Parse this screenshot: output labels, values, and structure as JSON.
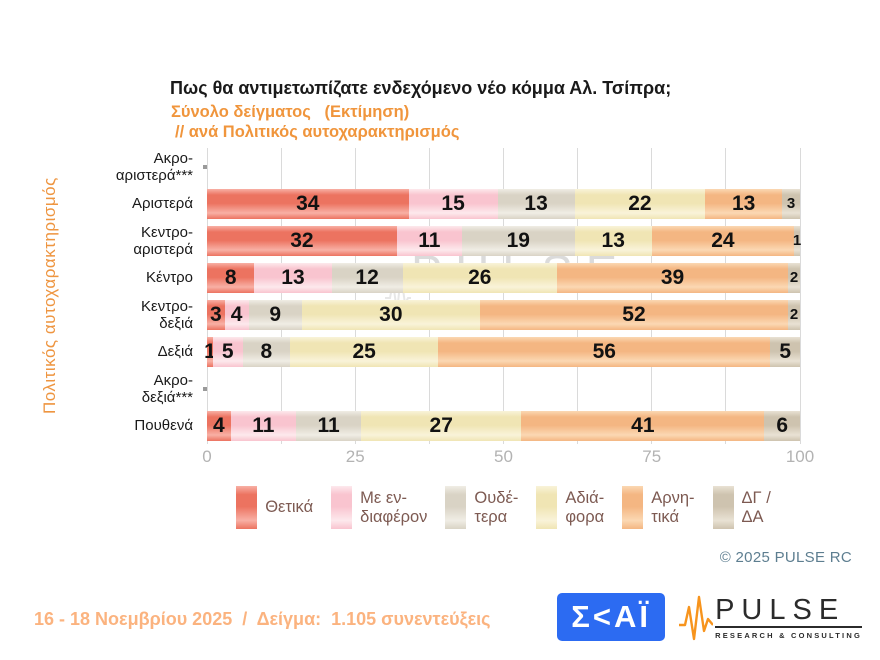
{
  "header": {
    "title": "Πως θα αντιμετωπίζατε ενδεχόμενο νέο κόμμα Αλ. Τσίπρα;",
    "subtitle_sample": "Σύνολο δείγματος   (Εκτίμηση)",
    "subtitle_breakdown": "// ανά Πολιτικός αυτοχαρακτηρισμός"
  },
  "chart_data": {
    "type": "bar",
    "variant": "horizontal-stacked-100",
    "title": "Πως θα αντιμετωπίζατε ενδεχόμενο νέο κόμμα Αλ. Τσίπρα;",
    "y_axis_label": "Πολιτικός αυτοχαρακτηρισμός",
    "xlim": [
      0,
      100
    ],
    "x_ticks": [
      0,
      25,
      50,
      75,
      100
    ],
    "gridline_step": 12.5,
    "grid": true,
    "legend_position": "bottom",
    "series_names": [
      "Θετικά",
      "Με ενδιαφέρον",
      "Ουδέτερα",
      "Αδιάφορα",
      "Αρνητικά",
      "ΔΓ/ΔΑ"
    ],
    "rows": [
      {
        "label": "Ακρο-αριστερά***",
        "label_lines": [
          "Ακρο-",
          "αριστερά***"
        ],
        "values": null
      },
      {
        "label": "Αριστερά",
        "label_lines": [
          "Αριστερά"
        ],
        "values": [
          34,
          15,
          13,
          22,
          13,
          3
        ]
      },
      {
        "label": "Κεντρο-αριστερά",
        "label_lines": [
          "Κεντρο-",
          "αριστερά"
        ],
        "values": [
          32,
          11,
          19,
          13,
          24,
          1
        ]
      },
      {
        "label": "Κέντρο",
        "label_lines": [
          "Κέντρο"
        ],
        "values": [
          8,
          13,
          12,
          26,
          39,
          2
        ]
      },
      {
        "label": "Κεντρο-δεξιά",
        "label_lines": [
          "Κεντρο-",
          "δεξιά"
        ],
        "values": [
          3,
          4,
          9,
          30,
          52,
          2
        ]
      },
      {
        "label": "Δεξιά",
        "label_lines": [
          "Δεξιά"
        ],
        "values": [
          1,
          5,
          8,
          25,
          56,
          5
        ]
      },
      {
        "label": "Ακρο-δεξιά***",
        "label_lines": [
          "Ακρο-",
          "δεξιά***"
        ],
        "values": null
      },
      {
        "label": "Πουθενά",
        "label_lines": [
          "Πουθενά"
        ],
        "values": [
          4,
          11,
          11,
          27,
          41,
          6
        ]
      }
    ]
  },
  "legend": {
    "items": [
      {
        "name": "Θετικά",
        "label_lines": [
          "Θετικά"
        ],
        "color_main": "#ec7360",
        "color_light": "#f8b0a5"
      },
      {
        "name": "Με ενδιαφέρον",
        "label_lines": [
          "Με εν-",
          "διαφέρον"
        ],
        "color_main": "#f9c4cf",
        "color_light": "#fde9ed"
      },
      {
        "name": "Ουδέτερα",
        "label_lines": [
          "Ουδέ-",
          "τερα"
        ],
        "color_main": "#d9d3c5",
        "color_light": "#f0ede5"
      },
      {
        "name": "Αδιάφορα",
        "label_lines": [
          "Αδιά-",
          "φορα"
        ],
        "color_main": "#f0e5b4",
        "color_light": "#f9f3d9"
      },
      {
        "name": "Αρνητικά",
        "label_lines": [
          "Αρνη-",
          "τικά"
        ],
        "color_main": "#f4b682",
        "color_light": "#fbd8b3"
      },
      {
        "name": "ΔΓ/ΔΑ",
        "label_lines": [
          "ΔΓ /",
          "ΔΑ"
        ],
        "color_main": "#cec3af",
        "color_light": "#e9e2d4"
      }
    ]
  },
  "watermark": {
    "text": "PULSE",
    "subtext": "RESEARCH & CONSULTING"
  },
  "copyright": "©  2025  PULSE RC",
  "footer": {
    "fieldwork": "16 - 18 Νοεμβρίου 2025  /  Δείγμα:  1.105 συνεντεύξεις",
    "skai_logo_text": "Σ<ΑΪ",
    "pulse_logo_text": "PULSE",
    "pulse_logo_subtext": "RESEARCH & CONSULTING"
  },
  "colors": {
    "title_text": "#1a1a1a",
    "subtitle_orange": "#f0953c",
    "axis_label_orange": "#ee9540",
    "tick_gray": "#b3b3b3",
    "gridline_gray": "#dadada",
    "legend_text_brown": "#7d5a52",
    "copyright_blue": "#5d7e90",
    "fieldwork_orange": "#fbb37f",
    "skai_blue": "#2c6bf2",
    "pulse_wave_orange": "#f7941d",
    "value_text": "#121212"
  }
}
